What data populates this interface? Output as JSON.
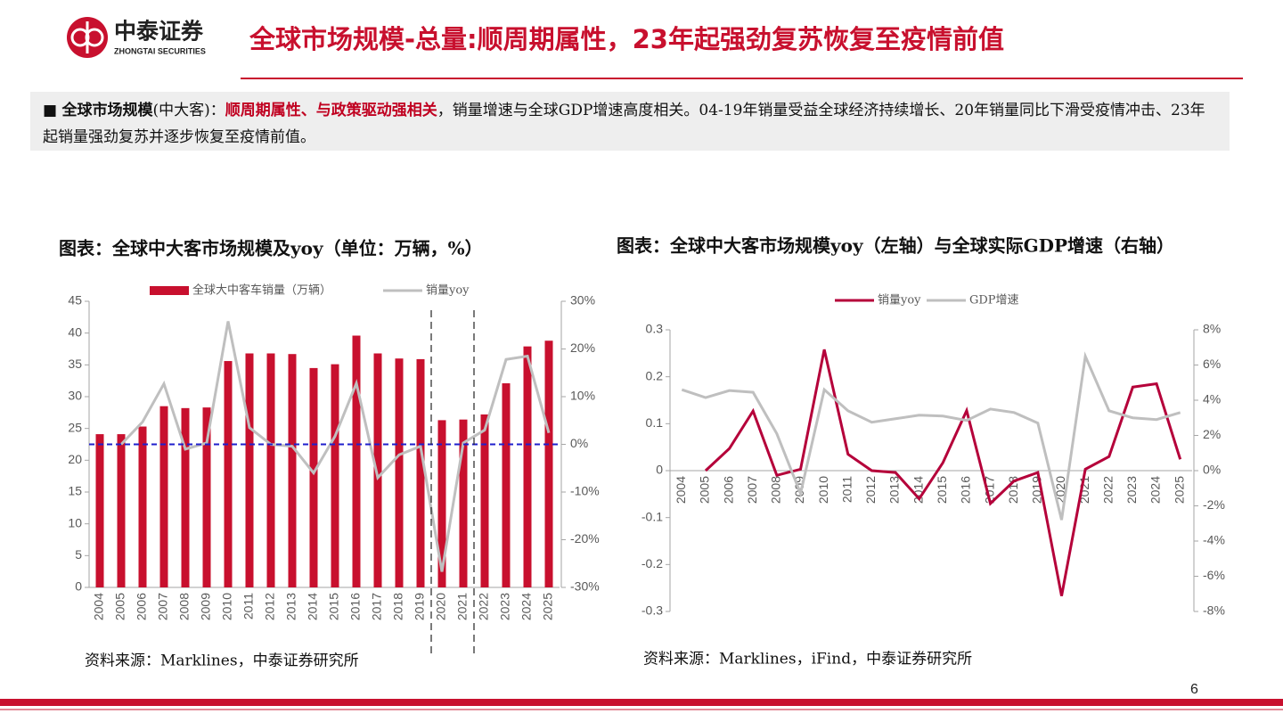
{
  "header": {
    "brand": "中泰证券",
    "brand_en": "ZHONGTAI SECURITIES",
    "title": "全球市场规模-总量:顺周期属性，23年起强劲复苏恢复至疫情前值"
  },
  "summary": {
    "lead": "全球市场规模",
    "paren": "(中大客)：",
    "highlight": "顺周期属性、与政策驱动强相关",
    "rest": "，销量增速与全球GDP增速高度相关。04-19年销量受益全球经济持续增长、20年销量同比下滑受疫情冲击、23年起销量强劲复苏并逐步恢复至疫情前值。"
  },
  "chart_data": [
    {
      "type": "bar",
      "title": "图表：全球中大客市场规模及yoy（单位：万辆，%）",
      "source": "资料来源：Marklines，中泰证券研究所",
      "categories": [
        "2004",
        "2005",
        "2006",
        "2007",
        "2008",
        "2009",
        "2010",
        "2011",
        "2012",
        "2013",
        "2014",
        "2015",
        "2016",
        "2017",
        "2018",
        "2019",
        "2020",
        "2021",
        "2022",
        "2023",
        "2024",
        "2025"
      ],
      "series": [
        {
          "name": "全球大中客车销量（万辆）",
          "type": "bar",
          "color": "#c8102e",
          "values": [
            24.1,
            24.1,
            25.3,
            28.5,
            28.2,
            28.3,
            35.6,
            36.8,
            36.8,
            36.7,
            34.5,
            35.1,
            39.6,
            36.8,
            36.0,
            35.9,
            26.3,
            26.4,
            27.2,
            32.1,
            37.9,
            38.8
          ]
        },
        {
          "name": "销量yoy",
          "type": "line",
          "axis": "y2",
          "color": "#bfbfbf",
          "values": [
            null,
            0,
            4.7,
            12.7,
            -1,
            0.3,
            25.8,
            3.5,
            0,
            -0.4,
            -6,
            1.7,
            12.8,
            -7,
            -2.2,
            -0.4,
            -26.7,
            0.3,
            3,
            17.8,
            18.5,
            2.4
          ]
        }
      ],
      "ylim": [
        0,
        45
      ],
      "yticks": [
        45,
        40,
        35,
        30,
        25,
        20,
        15,
        10,
        5,
        0
      ],
      "y2lim": [
        -30,
        30
      ],
      "y2ticks": [
        {
          "value": 30,
          "label": "30%"
        },
        {
          "value": 20,
          "label": "20%"
        },
        {
          "value": 10,
          "label": "10%"
        },
        {
          "value": 0,
          "label": "0%"
        },
        {
          "value": -10,
          "label": "-10%"
        },
        {
          "value": -20,
          "label": "-20%"
        },
        {
          "value": -30,
          "label": "-30%"
        }
      ],
      "legend": "top",
      "grid": false
    },
    {
      "type": "line",
      "title": "图表：全球中大客市场规模yoy（左轴）与全球实际GDP增速（右轴）",
      "source": "资料来源：Marklines，iFind，中泰证券研究所",
      "categories": [
        "2004",
        "2005",
        "2006",
        "2007",
        "2008",
        "2009",
        "2010",
        "2011",
        "2012",
        "2013",
        "2014",
        "2015",
        "2016",
        "2017",
        "2018",
        "2019",
        "2020",
        "2021",
        "2022",
        "2023",
        "2024",
        "2025"
      ],
      "series": [
        {
          "name": "销量yoy",
          "type": "line",
          "color": "#b5003a",
          "values": [
            null,
            0,
            0.047,
            0.127,
            -0.01,
            0.003,
            0.258,
            0.035,
            0,
            -0.004,
            -0.06,
            0.017,
            0.128,
            -0.07,
            -0.022,
            -0.004,
            -0.267,
            0.003,
            0.03,
            0.178,
            0.185,
            0.024
          ]
        },
        {
          "name": "GDP增速",
          "type": "line",
          "axis": "y2",
          "color": "#bfbfbf",
          "values": [
            4.6,
            4.15,
            4.55,
            4.45,
            2.1,
            -1.3,
            4.6,
            3.4,
            2.75,
            2.95,
            3.15,
            3.1,
            2.85,
            3.5,
            3.3,
            2.7,
            -2.8,
            6.5,
            3.4,
            3.0,
            2.9,
            3.3
          ]
        }
      ],
      "ylim": [
        -0.3,
        0.3
      ],
      "yticks": [
        0.3,
        0.2,
        0.1,
        0,
        -0.1,
        -0.2,
        -0.3
      ],
      "y2lim": [
        -8,
        8
      ],
      "y2ticks": [
        {
          "value": 8,
          "label": "8%"
        },
        {
          "value": 6,
          "label": "6%"
        },
        {
          "value": 4,
          "label": "4%"
        },
        {
          "value": 2,
          "label": "2%"
        },
        {
          "value": 0,
          "label": "0%"
        },
        {
          "value": -2,
          "label": "-2%"
        },
        {
          "value": -4,
          "label": "-4%"
        },
        {
          "value": -6,
          "label": "-6%"
        },
        {
          "value": -8,
          "label": "-8%"
        }
      ],
      "legend": "top",
      "grid": false
    }
  ],
  "page_number": "6"
}
